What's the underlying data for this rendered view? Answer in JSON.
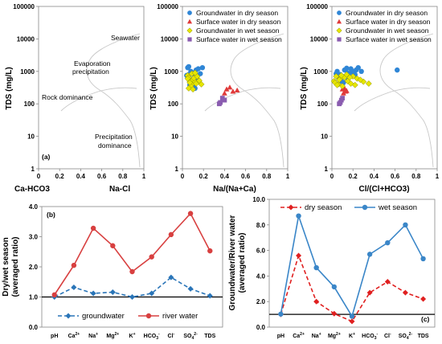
{
  "figure": {
    "gibbs_tds_label": "TDS (mg/L)",
    "gibbs_x_left_label": "Ca-HCO3",
    "gibbs_x_right_label": "Na-Cl",
    "gibbs_na_label": "Na/(Na+Ca)",
    "gibbs_cl_label": "Cl/(Cl+HCO3)",
    "zones": {
      "seawater": "Seawater",
      "evap1": "Evaporation",
      "evap2": "precipitation",
      "rock": "Rock dominance",
      "prec1": "Precipitation",
      "prec2": "dominance"
    },
    "panel_a": "(a)",
    "panel_b": "(b)",
    "panel_c": "(c)",
    "ratio_b_ylabel_1": "Dry/wet season",
    "ratio_b_ylabel_2": "(averaged ratio)",
    "ratio_c_ylabel_1": "Groundwater/River water",
    "ratio_c_ylabel_2": "(averaged ratio)"
  },
  "colors": {
    "gw_dry": "#2f86d6",
    "sw_dry": "#e03a3a",
    "gw_wet": "#e6e600",
    "gw_wet_edge": "#8a8a00",
    "sw_wet": "#8a5cb0",
    "curve": "#c8c8c8",
    "groundwater_line": "#2a75b8",
    "river_line": "#d84040",
    "dry_line": "#e02020",
    "wet_line": "#3a86c8"
  },
  "chart_data": [
    {
      "type": "scatter",
      "id": "gibbs_a",
      "ylabel": "TDS (mg/L)",
      "yscale": "log",
      "ylim": [
        1,
        100000
      ],
      "yticks": [
        "1",
        "10",
        "100",
        "1000",
        "10000",
        "100000"
      ],
      "xlim": [
        0,
        1
      ],
      "xticks": [
        "0",
        "0.2",
        "0.4",
        "0.6",
        "0.8",
        "1"
      ],
      "annotations": [
        "Seawater",
        "Evaporation precipitation",
        "Rock dominance",
        "Precipitation dominance",
        "(a)"
      ],
      "x_end_labels": [
        "Ca-HCO3",
        "Na-Cl"
      ]
    },
    {
      "type": "scatter",
      "id": "gibbs_na",
      "xlabel": "Na/(Na+Ca)",
      "ylabel": "TDS (mg/L)",
      "yscale": "log",
      "ylim": [
        1,
        100000
      ],
      "xlim": [
        0,
        1
      ],
      "yticks": [
        "1",
        "10",
        "100",
        "1000",
        "10000",
        "100000"
      ],
      "xticks": [
        "0",
        "0.2",
        "0.4",
        "0.6",
        "0.8",
        "1"
      ],
      "legend": "top-right",
      "series": [
        {
          "name": "Groundwater in dry season",
          "points": [
            [
              0.05,
              1300
            ],
            [
              0.08,
              1000
            ],
            [
              0.06,
              800
            ],
            [
              0.1,
              900
            ],
            [
              0.12,
              700
            ],
            [
              0.07,
              600
            ],
            [
              0.09,
              500
            ],
            [
              0.11,
              450
            ],
            [
              0.13,
              1100
            ],
            [
              0.15,
              1200
            ],
            [
              0.06,
              1400
            ],
            [
              0.1,
              350
            ],
            [
              0.08,
              420
            ],
            [
              0.14,
              600
            ],
            [
              0.04,
              750
            ],
            [
              0.17,
              850
            ],
            [
              0.19,
              1300
            ],
            [
              0.12,
              300
            ],
            [
              0.07,
              380
            ]
          ]
        },
        {
          "name": "Surface water in dry season",
          "points": [
            [
              0.42,
              280
            ],
            [
              0.45,
              320
            ],
            [
              0.48,
              240
            ],
            [
              0.52,
              260
            ],
            [
              0.4,
              210
            ]
          ]
        },
        {
          "name": "Groundwater in wet season",
          "points": [
            [
              0.05,
              750
            ],
            [
              0.07,
              500
            ],
            [
              0.09,
              400
            ],
            [
              0.06,
              650
            ],
            [
              0.1,
              550
            ],
            [
              0.12,
              480
            ],
            [
              0.08,
              350
            ],
            [
              0.11,
              620
            ],
            [
              0.13,
              420
            ],
            [
              0.06,
              300
            ],
            [
              0.14,
              700
            ],
            [
              0.16,
              520
            ],
            [
              0.1,
              280
            ],
            [
              0.18,
              400
            ],
            [
              0.05,
              600
            ],
            [
              0.09,
              850
            ],
            [
              0.12,
              900
            ],
            [
              0.07,
              450
            ]
          ]
        },
        {
          "name": "Surface water in wet season",
          "points": [
            [
              0.36,
              110
            ],
            [
              0.38,
              150
            ],
            [
              0.4,
              130
            ],
            [
              0.35,
              100
            ]
          ]
        }
      ]
    },
    {
      "type": "scatter",
      "id": "gibbs_cl",
      "xlabel": "Cl/(Cl+HCO3)",
      "ylabel": "TDS (mg/L)",
      "yscale": "log",
      "ylim": [
        1,
        100000
      ],
      "xlim": [
        0,
        1
      ],
      "yticks": [
        "1",
        "10",
        "100",
        "1000",
        "10000",
        "100000"
      ],
      "xticks": [
        "0",
        "0.2",
        "0.4",
        "0.6",
        "0.8",
        "1"
      ],
      "legend": "top-right",
      "series": [
        {
          "name": "Groundwater in dry season",
          "points": [
            [
              0.05,
              1000
            ],
            [
              0.08,
              800
            ],
            [
              0.1,
              700
            ],
            [
              0.12,
              1100
            ],
            [
              0.15,
              900
            ],
            [
              0.18,
              1200
            ],
            [
              0.2,
              1000
            ],
            [
              0.22,
              800
            ],
            [
              0.25,
              1300
            ],
            [
              0.07,
              600
            ],
            [
              0.09,
              500
            ],
            [
              0.13,
              650
            ],
            [
              0.16,
              750
            ],
            [
              0.11,
              450
            ],
            [
              0.19,
              950
            ],
            [
              0.23,
              1100
            ],
            [
              0.62,
              1100
            ],
            [
              0.04,
              850
            ],
            [
              0.28,
              1000
            ],
            [
              0.14,
              1250
            ]
          ]
        },
        {
          "name": "Surface water in dry season",
          "points": [
            [
              0.1,
              280
            ],
            [
              0.12,
              300
            ],
            [
              0.14,
              250
            ],
            [
              0.11,
              210
            ],
            [
              0.13,
              240
            ]
          ]
        },
        {
          "name": "Groundwater in wet season",
          "points": [
            [
              0.02,
              500
            ],
            [
              0.04,
              700
            ],
            [
              0.06,
              400
            ],
            [
              0.08,
              600
            ],
            [
              0.1,
              350
            ],
            [
              0.03,
              450
            ],
            [
              0.07,
              550
            ],
            [
              0.12,
              650
            ],
            [
              0.15,
              500
            ],
            [
              0.18,
              420
            ],
            [
              0.2,
              700
            ],
            [
              0.24,
              600
            ],
            [
              0.3,
              480
            ],
            [
              0.35,
              420
            ],
            [
              0.05,
              380
            ],
            [
              0.09,
              750
            ],
            [
              0.14,
              800
            ],
            [
              0.27,
              550
            ],
            [
              0.22,
              380
            ],
            [
              0.17,
              650
            ]
          ]
        },
        {
          "name": "Surface water in wet season",
          "points": [
            [
              0.08,
              110
            ],
            [
              0.09,
              130
            ],
            [
              0.1,
              150
            ],
            [
              0.07,
              100
            ]
          ]
        }
      ]
    },
    {
      "type": "line",
      "id": "ratio_b",
      "categories": [
        "pH",
        "Ca2+",
        "Na+",
        "Mg2+",
        "K+",
        "HCO3-",
        "Cl-",
        "SO42-",
        "TDS"
      ],
      "ylabel": "Dry/wet season (averaged ratio)",
      "ylim": [
        0,
        4
      ],
      "reference_line": 1,
      "yticks": [
        "0.0",
        "1.0",
        "2.0",
        "3.0",
        "4.0"
      ],
      "legend": "bottom",
      "series": [
        {
          "name": "groundwater",
          "values": [
            1.0,
            1.32,
            1.12,
            1.16,
            1.0,
            1.12,
            1.65,
            1.27,
            1.04
          ]
        },
        {
          "name": "river water",
          "values": [
            1.07,
            2.05,
            3.28,
            2.7,
            1.84,
            2.33,
            3.07,
            3.77,
            2.53
          ]
        }
      ]
    },
    {
      "type": "line",
      "id": "ratio_c",
      "categories": [
        "pH",
        "Ca2+",
        "Na+",
        "Mg2+",
        "K+",
        "HCO3-",
        "Cl-",
        "SO42-",
        "TDS"
      ],
      "ylabel": "Groundwater/River water (averaged ratio)",
      "ylim": [
        0,
        10
      ],
      "reference_line": 1,
      "yticks": [
        "0.0",
        "2.0",
        "4.0",
        "6.0",
        "8.0",
        "10.0"
      ],
      "legend": "top",
      "series": [
        {
          "name": "dry season",
          "values": [
            1.0,
            5.6,
            2.0,
            1.05,
            0.45,
            2.7,
            3.55,
            2.7,
            2.2
          ]
        },
        {
          "name": "wet season",
          "values": [
            1.02,
            8.7,
            4.65,
            3.15,
            0.85,
            5.7,
            6.6,
            8.0,
            5.35
          ]
        }
      ]
    }
  ]
}
